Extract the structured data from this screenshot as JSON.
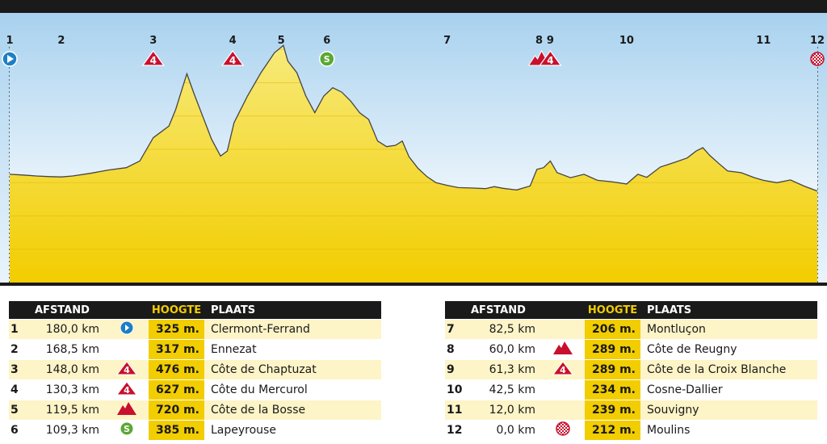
{
  "chart_data": {
    "type": "area",
    "y_unit": "m.",
    "checkpoints": [
      {
        "id": "1",
        "dist": 0.0,
        "icon": "start-icon"
      },
      {
        "id": "2",
        "dist": 11.5,
        "icon": ""
      },
      {
        "id": "3",
        "dist": 32.0,
        "icon": "climb-cat4-icon",
        "cat": "4"
      },
      {
        "id": "4",
        "dist": 49.7,
        "icon": "climb-cat4-icon",
        "cat": "4"
      },
      {
        "id": "5",
        "dist": 60.5,
        "icon": ""
      },
      {
        "id": "6",
        "dist": 70.7,
        "icon": "sprint-icon",
        "sprint": "S"
      },
      {
        "id": "7",
        "dist": 97.5,
        "icon": ""
      },
      {
        "id": "8",
        "dist": 120.0,
        "icon": "climb-uncat-icon"
      },
      {
        "id": "9",
        "dist": 118.7,
        "icon": "climb-cat4-icon",
        "cat": "4"
      },
      {
        "id": "10",
        "dist": 137.5,
        "icon": ""
      },
      {
        "id": "11",
        "dist": 168.0,
        "icon": ""
      },
      {
        "id": "12",
        "dist": 180.0,
        "icon": "finish-icon"
      }
    ],
    "profile": [
      [
        0,
        325
      ],
      [
        3,
        323
      ],
      [
        6,
        320
      ],
      [
        9,
        318
      ],
      [
        11.5,
        317
      ],
      [
        14,
        320
      ],
      [
        18,
        328
      ],
      [
        22,
        338
      ],
      [
        26,
        345
      ],
      [
        29,
        365
      ],
      [
        32,
        435
      ],
      [
        34,
        455
      ],
      [
        35.5,
        470
      ],
      [
        37,
        520
      ],
      [
        38.5,
        585
      ],
      [
        39.5,
        627
      ],
      [
        41,
        570
      ],
      [
        43,
        500
      ],
      [
        45,
        430
      ],
      [
        47,
        380
      ],
      [
        48.5,
        395
      ],
      [
        50,
        480
      ],
      [
        53,
        560
      ],
      [
        56,
        630
      ],
      [
        59,
        690
      ],
      [
        61,
        712
      ],
      [
        62,
        665
      ],
      [
        64,
        630
      ],
      [
        66,
        560
      ],
      [
        68,
        510
      ],
      [
        70,
        560
      ],
      [
        72,
        585
      ],
      [
        74,
        572
      ],
      [
        76,
        545
      ],
      [
        78,
        510
      ],
      [
        80,
        490
      ],
      [
        82,
        425
      ],
      [
        84,
        408
      ],
      [
        86,
        412
      ],
      [
        87.5,
        425
      ],
      [
        89,
        378
      ],
      [
        91,
        343
      ],
      [
        93,
        318
      ],
      [
        95,
        300
      ],
      [
        97.5,
        292
      ],
      [
        100,
        285
      ],
      [
        103,
        284
      ],
      [
        106,
        282
      ],
      [
        108,
        288
      ],
      [
        110,
        283
      ],
      [
        113,
        278
      ],
      [
        116,
        290
      ],
      [
        117.5,
        340
      ],
      [
        119,
        345
      ],
      [
        120.5,
        365
      ],
      [
        122,
        330
      ],
      [
        125,
        315
      ],
      [
        128,
        325
      ],
      [
        131,
        307
      ],
      [
        134,
        303
      ],
      [
        137.5,
        296
      ],
      [
        140,
        325
      ],
      [
        142,
        316
      ],
      [
        145,
        347
      ],
      [
        148,
        360
      ],
      [
        151,
        374
      ],
      [
        153,
        395
      ],
      [
        154.5,
        405
      ],
      [
        156,
        382
      ],
      [
        158,
        358
      ],
      [
        160,
        335
      ],
      [
        163,
        330
      ],
      [
        166,
        315
      ],
      [
        168,
        307
      ],
      [
        171,
        300
      ],
      [
        174,
        308
      ],
      [
        177,
        290
      ],
      [
        180,
        275
      ]
    ],
    "xlim": [
      0,
      180
    ],
    "ylim": [
      0,
      800
    ],
    "grid": true,
    "table": {
      "headers": {
        "afstand": "AFSTAND",
        "hoogte": "HOOGTE",
        "plaats": "PLAATS"
      },
      "rows": [
        {
          "num": "1",
          "afstand": "180,0 km",
          "icon": "start-icon",
          "hoogte": "325 m.",
          "plaats": "Clermont-Ferrand"
        },
        {
          "num": "2",
          "afstand": "168,5 km",
          "icon": "",
          "hoogte": "317 m.",
          "plaats": "Ennezat"
        },
        {
          "num": "3",
          "afstand": "148,0 km",
          "icon": "climb-cat4-icon",
          "hoogte": "476 m.",
          "plaats": "Côte de Chaptuzat"
        },
        {
          "num": "4",
          "afstand": "130,3 km",
          "icon": "climb-cat4-icon",
          "hoogte": "627 m.",
          "plaats": "Côte du Mercurol"
        },
        {
          "num": "5",
          "afstand": "119,5 km",
          "icon": "climb-uncat-icon",
          "hoogte": "720 m.",
          "plaats": "Côte de la Bosse"
        },
        {
          "num": "6",
          "afstand": "109,3 km",
          "icon": "sprint-icon",
          "hoogte": "385 m.",
          "plaats": "Lapeyrouse"
        },
        {
          "num": "7",
          "afstand": "82,5 km",
          "icon": "",
          "hoogte": "206 m.",
          "plaats": "Montluçon"
        },
        {
          "num": "8",
          "afstand": "60,0 km",
          "icon": "climb-uncat-icon",
          "hoogte": "289 m.",
          "plaats": "Côte de Reugny"
        },
        {
          "num": "9",
          "afstand": "61,3 km",
          "icon": "climb-cat4-icon",
          "hoogte": "289 m.",
          "plaats": "Côte de la Croix Blanche"
        },
        {
          "num": "10",
          "afstand": "42,5 km",
          "icon": "",
          "hoogte": "234 m.",
          "plaats": "Cosne-Dallier"
        },
        {
          "num": "11",
          "afstand": "12,0 km",
          "icon": "",
          "hoogte": "239 m.",
          "plaats": "Souvigny"
        },
        {
          "num": "12",
          "afstand": "0,0 km",
          "icon": "finish-icon",
          "hoogte": "212 m.",
          "plaats": "Moulins"
        }
      ]
    }
  },
  "colors": {
    "fill_top": "#f7ea7a",
    "fill_bottom": "#f2cd00",
    "sky_top": "#a9d2ef",
    "sky_bottom": "#eaf4fb",
    "climb": "#c8102e",
    "start": "#1e7fc4",
    "sprint": "#5aa832",
    "header_bar": "#1a1a1a"
  }
}
